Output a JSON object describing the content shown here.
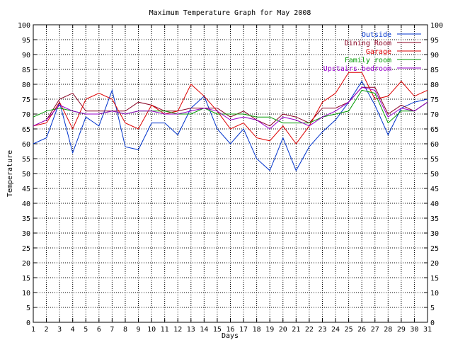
{
  "chart_data": {
    "type": "line",
    "title": "Maximum Temperature Graph for May 2008",
    "xlabel": "Days",
    "ylabel": "Temperature",
    "xlim": [
      1,
      31
    ],
    "ylim": [
      0,
      100
    ],
    "x_ticks": [
      1,
      2,
      3,
      4,
      5,
      6,
      7,
      8,
      9,
      10,
      11,
      12,
      13,
      14,
      15,
      16,
      17,
      18,
      19,
      20,
      21,
      22,
      23,
      24,
      25,
      26,
      27,
      28,
      29,
      30,
      31
    ],
    "y_ticks": [
      0,
      5,
      10,
      15,
      20,
      25,
      30,
      35,
      40,
      45,
      50,
      55,
      60,
      65,
      70,
      75,
      80,
      85,
      90,
      95,
      100
    ],
    "grid": true,
    "legend_position": "top-right",
    "x": [
      1,
      2,
      3,
      4,
      5,
      6,
      7,
      8,
      9,
      10,
      11,
      12,
      13,
      14,
      15,
      16,
      17,
      18,
      19,
      20,
      21,
      22,
      23,
      24,
      25,
      26,
      27,
      28,
      29,
      30,
      31
    ],
    "series": [
      {
        "name": "Outside",
        "color": "#0033cc",
        "values": [
          60,
          62,
          74,
          57,
          69,
          66,
          78,
          59,
          58,
          67,
          67,
          63,
          72,
          76,
          65,
          60,
          65,
          55,
          51,
          62,
          51,
          59,
          64,
          68,
          74,
          81,
          73,
          63,
          72,
          74,
          75
        ]
      },
      {
        "name": "Dining Room",
        "color": "#880022",
        "values": [
          66,
          68,
          75,
          77,
          71,
          71,
          71,
          71,
          74,
          73,
          71,
          71,
          72,
          72,
          72,
          69,
          71,
          68,
          66,
          70,
          69,
          67,
          72,
          72,
          74,
          79,
          79,
          70,
          73,
          71,
          74
        ]
      },
      {
        "name": "Garage",
        "color": "#dd0000",
        "values": [
          66,
          67,
          74,
          65,
          75,
          77,
          75,
          67,
          65,
          73,
          70,
          71,
          80,
          76,
          71,
          65,
          67,
          62,
          61,
          66,
          60,
          66,
          74,
          77,
          84,
          84,
          75,
          76,
          81,
          76,
          78
        ]
      },
      {
        "name": "Family room",
        "color": "#009900",
        "values": [
          69,
          71,
          72,
          71,
          70,
          70,
          71,
          70,
          71,
          71,
          71,
          70,
          70,
          72,
          70,
          70,
          70,
          69,
          69,
          67,
          67,
          67,
          69,
          70,
          71,
          78,
          77,
          67,
          71,
          71,
          74
        ]
      },
      {
        "name": "Upstairs bedroom",
        "color": "#9900cc",
        "values": [
          66,
          68,
          73,
          71,
          70,
          70,
          71,
          70,
          71,
          71,
          70,
          70,
          71,
          72,
          71,
          68,
          69,
          68,
          65,
          69,
          68,
          66,
          69,
          71,
          74,
          79,
          78,
          69,
          72,
          71,
          74
        ]
      }
    ]
  }
}
